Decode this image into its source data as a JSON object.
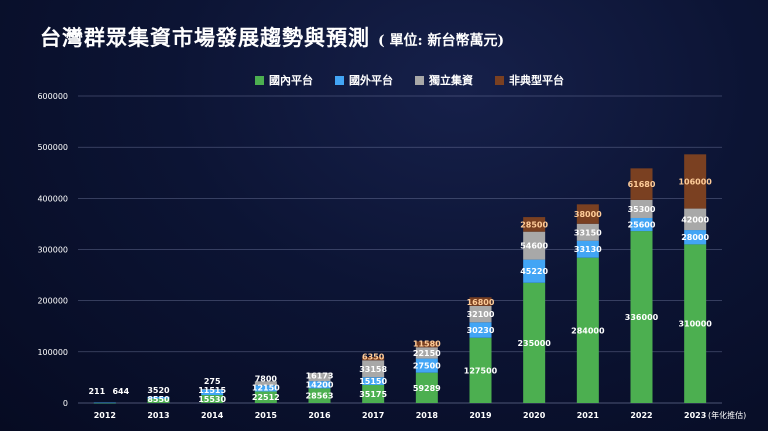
{
  "header": {
    "title": "台灣群眾集資市場發展趨勢與預測",
    "unit": "( 單位: 新台幣萬元)"
  },
  "chart_data": {
    "type": "bar",
    "stacked": true,
    "categories": [
      "2012",
      "2013",
      "2014",
      "2015",
      "2016",
      "2017",
      "2018",
      "2019",
      "2020",
      "2021",
      "2022",
      "2023"
    ],
    "series": [
      {
        "name": "國內平台",
        "color": "#4caf50",
        "values": [
          211,
          8550,
          15530,
          22512,
          28563,
          35175,
          59289,
          127500,
          235000,
          284000,
          336000,
          310000
        ]
      },
      {
        "name": "國外平台",
        "color": "#42a5f5",
        "values": [
          644,
          3520,
          11515,
          12150,
          14200,
          15150,
          27500,
          30230,
          45220,
          33130,
          25600,
          28000
        ]
      },
      {
        "name": "獨立集資",
        "color": "#a8a8a8",
        "values": [
          0,
          0,
          275,
          7800,
          16173,
          33158,
          22150,
          32100,
          54600,
          33150,
          35300,
          42000
        ]
      },
      {
        "name": "非典型平台",
        "color": "#7a4021",
        "values": [
          0,
          0,
          0,
          0,
          0,
          6350,
          11580,
          16800,
          28500,
          38000,
          61680,
          106000
        ]
      }
    ],
    "ylim": [
      0,
      600000
    ],
    "yticks": [
      0,
      100000,
      200000,
      300000,
      400000,
      500000,
      600000
    ],
    "annotation": "(年化推估)",
    "legend_position": "top-center",
    "grid": true
  }
}
